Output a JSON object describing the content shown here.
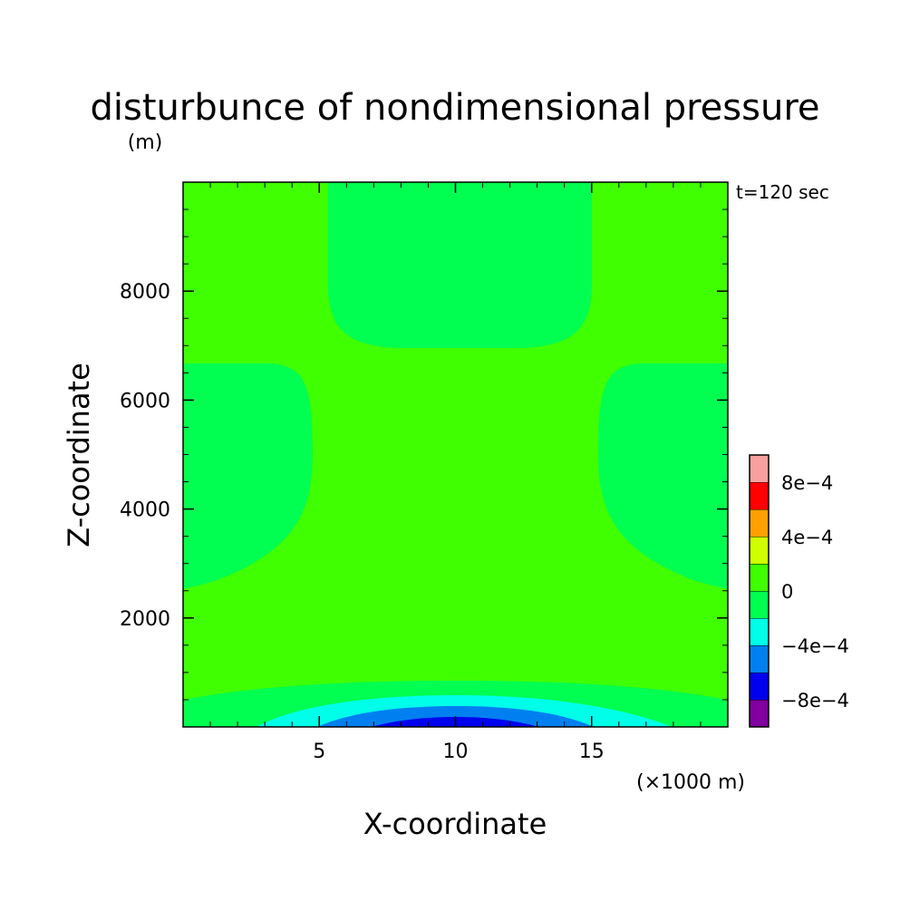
{
  "chart_data": {
    "type": "heatmap",
    "title": "disturbunce of nondimensional pressure",
    "subtitle": "(m)",
    "annotation": "t=120 sec",
    "xlabel": "X-coordinate",
    "xunit": "(×1000 m)",
    "ylabel": "Z-coordinate",
    "xlim": [
      0,
      20
    ],
    "ylim": [
      0,
      10000
    ],
    "xticks": [
      5,
      10,
      15
    ],
    "yticks": [
      2000,
      4000,
      6000,
      8000
    ],
    "xtick_labels": [
      "5",
      "10",
      "15"
    ],
    "ytick_labels": [
      "2000",
      "4000",
      "6000",
      "8000"
    ],
    "colorbar": {
      "levels": [
        -0.001,
        -0.0008,
        -0.0006,
        -0.0004,
        -0.0002,
        0,
        0.0002,
        0.0004,
        0.0006,
        0.0008,
        0.001
      ],
      "colors": [
        "#8000a0",
        "#0000ee",
        "#0080f0",
        "#00ffe8",
        "#00ff50",
        "#40ff00",
        "#d0ff00",
        "#ffa000",
        "#ff0000",
        "#f8a0a0"
      ],
      "tick_labels": [
        {
          "value": -0.0008,
          "label": "−8e−4"
        },
        {
          "value": -0.0004,
          "label": "−4e−4"
        },
        {
          "value": 0,
          "label": "0"
        },
        {
          "value": 0.0004,
          "label": "4e−4"
        },
        {
          "value": 0.0008,
          "label": "8e−4"
        }
      ]
    },
    "regions": [
      {
        "name": "background",
        "level_range": [
          0,
          0.0002
        ],
        "color": "#40ff00"
      },
      {
        "name": "top-center",
        "level_range": [
          -0.0002,
          0
        ],
        "x": [
          5.5,
          15.5
        ],
        "z": [
          6900,
          10000
        ]
      },
      {
        "name": "left-middle",
        "level_range": [
          -0.0002,
          0
        ],
        "x": [
          0,
          5
        ],
        "z": [
          2550,
          6650
        ]
      },
      {
        "name": "right-middle",
        "level_range": [
          -0.0002,
          0
        ],
        "x": [
          15,
          20
        ],
        "z": [
          2550,
          6650
        ]
      },
      {
        "name": "bottom-band",
        "level_range": [
          -0.0002,
          0
        ],
        "x": [
          0,
          20
        ],
        "z": [
          0,
          900
        ]
      },
      {
        "name": "bottom-cyan",
        "level_range": [
          -0.0004,
          -0.0002
        ],
        "x": [
          2.8,
          18.2
        ],
        "z": [
          0,
          600
        ]
      },
      {
        "name": "bottom-blue",
        "level_range": [
          -0.0006,
          -0.0004
        ],
        "x": [
          5.0,
          15.0
        ],
        "z": [
          0,
          380
        ]
      },
      {
        "name": "bottom-darkblue",
        "level_range": [
          -0.0008,
          -0.0006
        ],
        "x": [
          6.8,
          13.2
        ],
        "z": [
          0,
          180
        ]
      }
    ]
  }
}
